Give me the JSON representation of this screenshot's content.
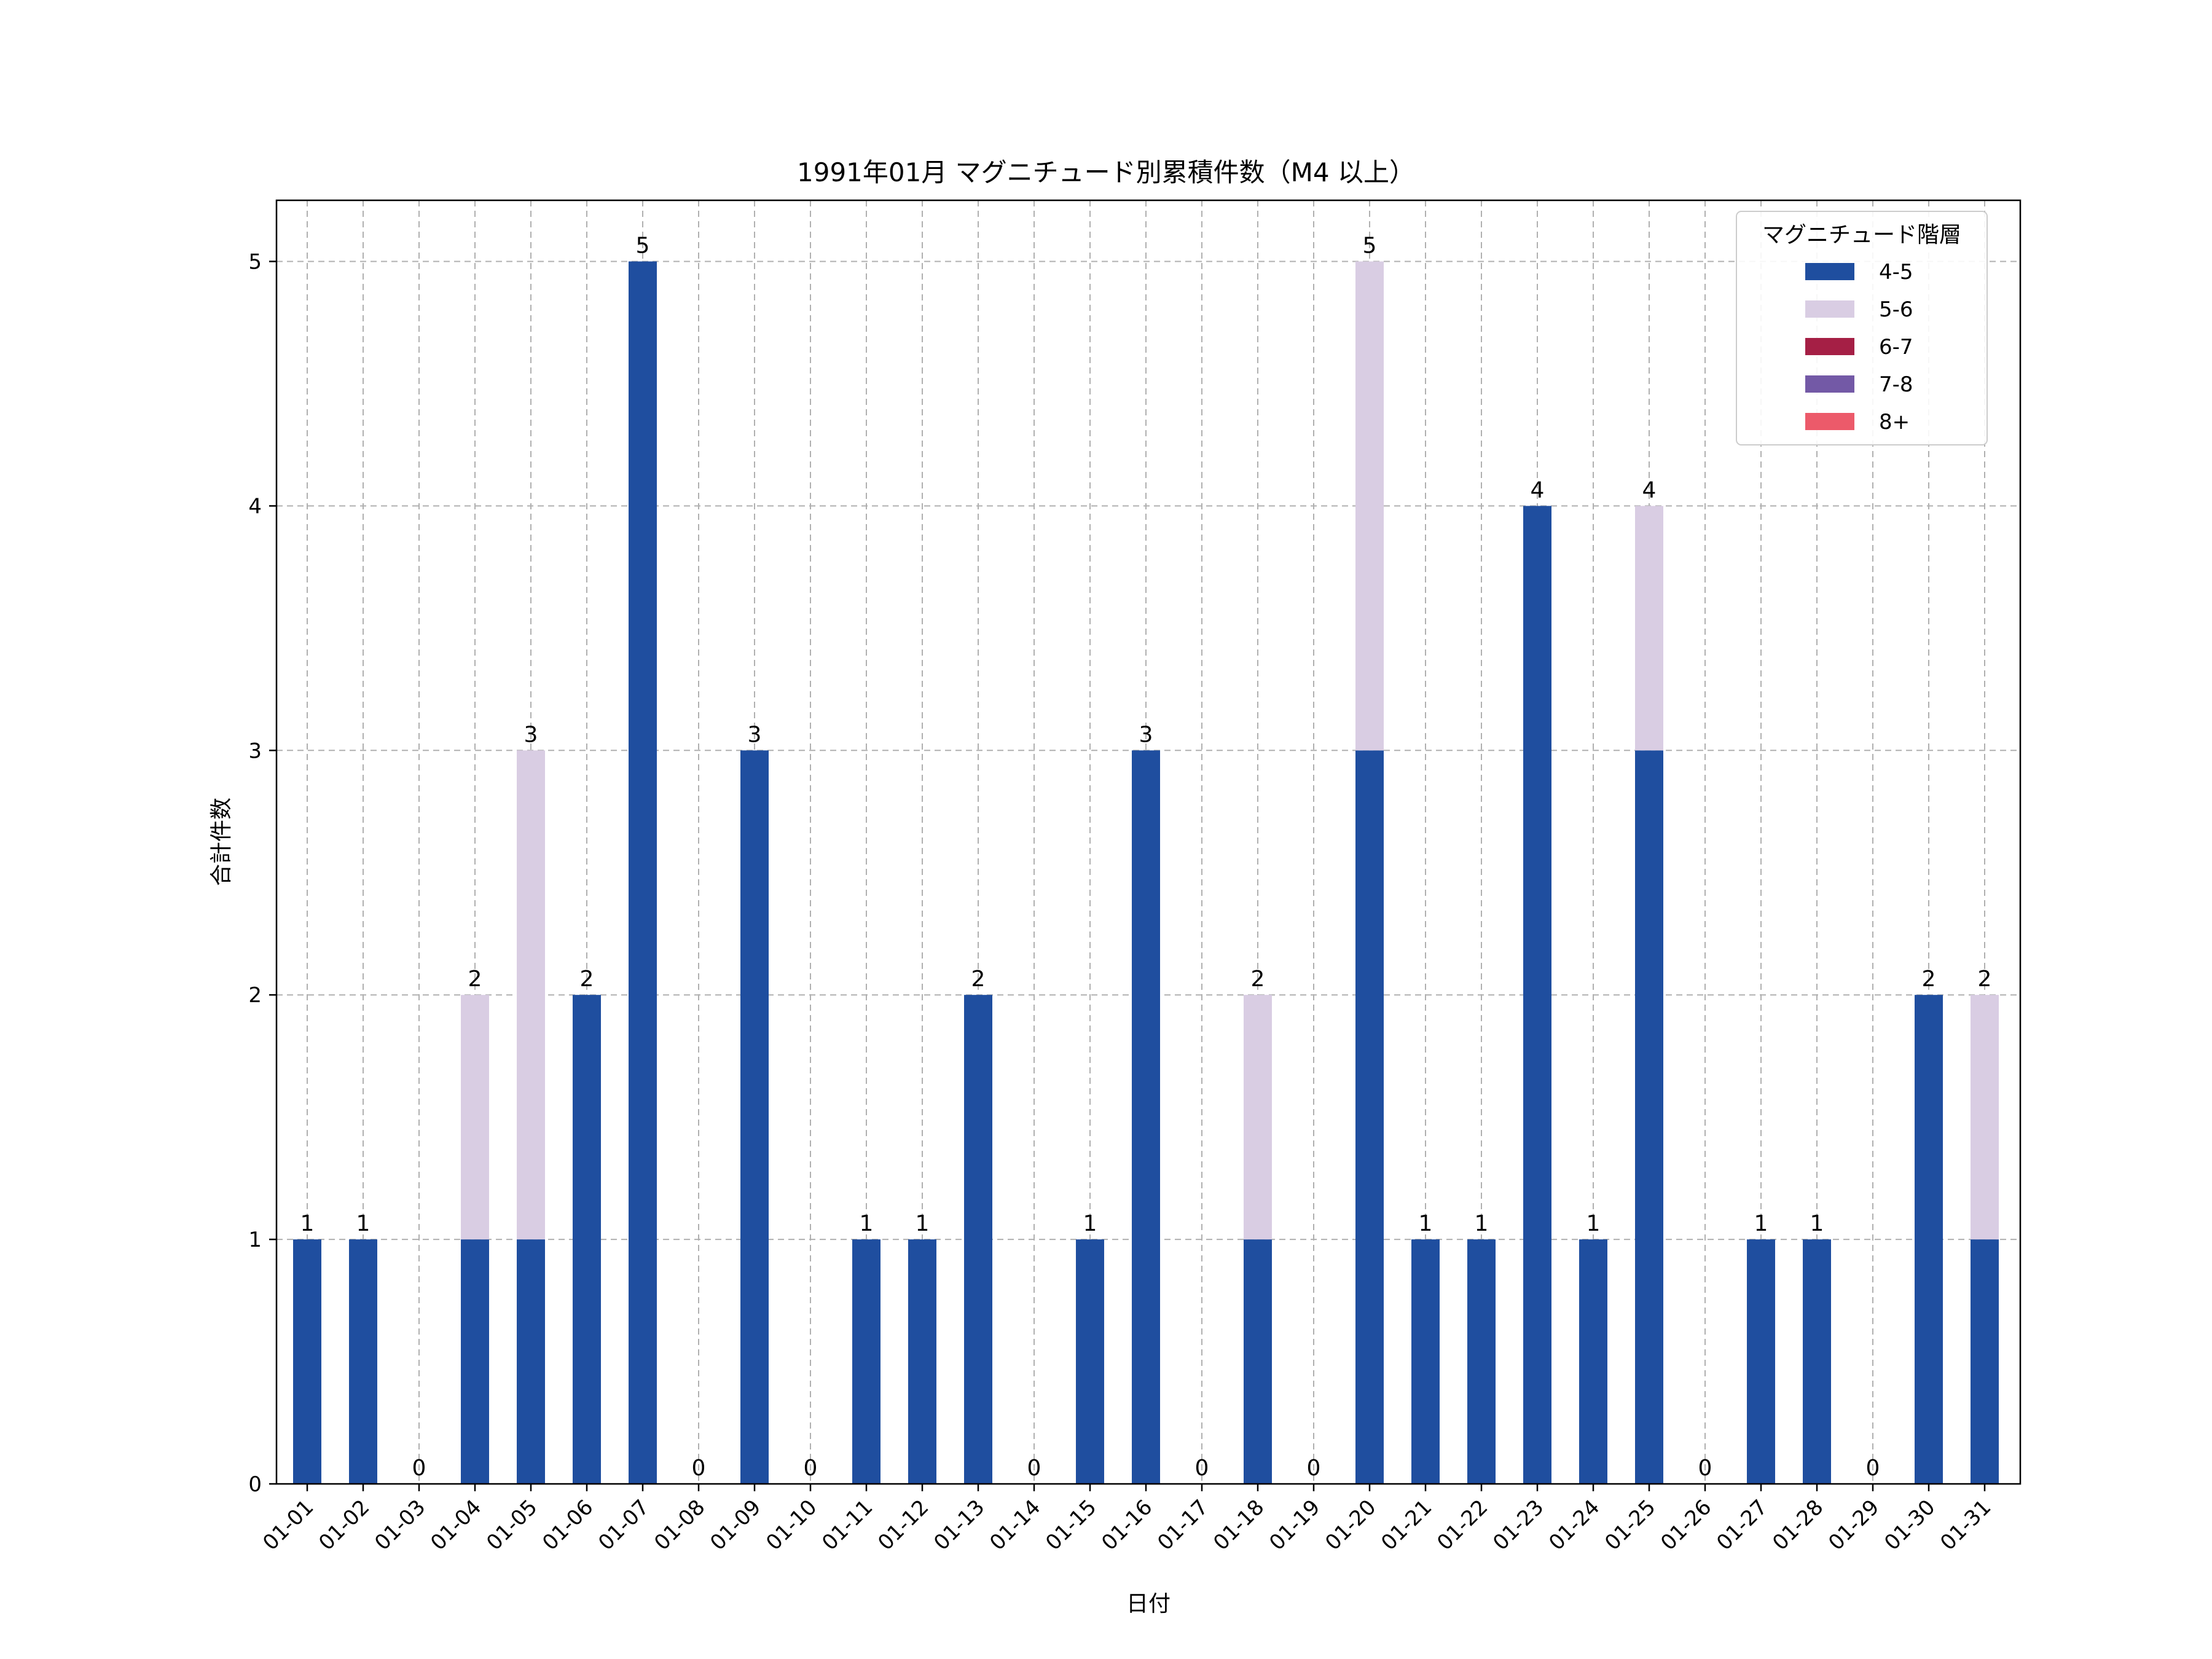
{
  "chart_data": {
    "type": "bar",
    "stacked": true,
    "title": "1991年01月 マグニチュード別累積件数（M4 以上）",
    "xlabel": "日付",
    "ylabel": "合計件数",
    "ylim": [
      0,
      5.25
    ],
    "yticks": [
      "0",
      "1",
      "2",
      "3",
      "4",
      "5"
    ],
    "grid": true,
    "legend_title": "マグニチュード階層",
    "legend_position": "top-right",
    "categories": [
      "01-01",
      "01-02",
      "01-03",
      "01-04",
      "01-05",
      "01-06",
      "01-07",
      "01-08",
      "01-09",
      "01-10",
      "01-11",
      "01-12",
      "01-13",
      "01-14",
      "01-15",
      "01-16",
      "01-17",
      "01-18",
      "01-19",
      "01-20",
      "01-21",
      "01-22",
      "01-23",
      "01-24",
      "01-25",
      "01-26",
      "01-27",
      "01-28",
      "01-29",
      "01-30",
      "01-31"
    ],
    "series": [
      {
        "name": "4-5",
        "color": "#1f4e9f",
        "values": [
          1,
          1,
          0,
          1,
          1,
          2,
          5,
          0,
          3,
          0,
          1,
          1,
          2,
          0,
          1,
          3,
          0,
          1,
          0,
          3,
          1,
          1,
          4,
          1,
          3,
          0,
          1,
          1,
          0,
          2,
          1
        ]
      },
      {
        "name": "5-6",
        "color": "#d9cde3",
        "values": [
          0,
          0,
          0,
          1,
          2,
          0,
          0,
          0,
          0,
          0,
          0,
          0,
          0,
          0,
          0,
          0,
          0,
          1,
          0,
          2,
          0,
          0,
          0,
          0,
          1,
          0,
          0,
          0,
          0,
          0,
          1
        ]
      },
      {
        "name": "6-7",
        "color": "#a51f45",
        "values": [
          0,
          0,
          0,
          0,
          0,
          0,
          0,
          0,
          0,
          0,
          0,
          0,
          0,
          0,
          0,
          0,
          0,
          0,
          0,
          0,
          0,
          0,
          0,
          0,
          0,
          0,
          0,
          0,
          0,
          0,
          0
        ]
      },
      {
        "name": "7-8",
        "color": "#7359a6",
        "values": [
          0,
          0,
          0,
          0,
          0,
          0,
          0,
          0,
          0,
          0,
          0,
          0,
          0,
          0,
          0,
          0,
          0,
          0,
          0,
          0,
          0,
          0,
          0,
          0,
          0,
          0,
          0,
          0,
          0,
          0,
          0
        ]
      },
      {
        "name": "8+",
        "color": "#ec5a6a",
        "values": [
          0,
          0,
          0,
          0,
          0,
          0,
          0,
          0,
          0,
          0,
          0,
          0,
          0,
          0,
          0,
          0,
          0,
          0,
          0,
          0,
          0,
          0,
          0,
          0,
          0,
          0,
          0,
          0,
          0,
          0,
          0
        ]
      }
    ],
    "totals": [
      1,
      1,
      0,
      2,
      3,
      2,
      5,
      0,
      3,
      0,
      1,
      1,
      2,
      0,
      1,
      3,
      0,
      2,
      0,
      5,
      1,
      1,
      4,
      1,
      4,
      0,
      1,
      1,
      0,
      2,
      2
    ]
  }
}
